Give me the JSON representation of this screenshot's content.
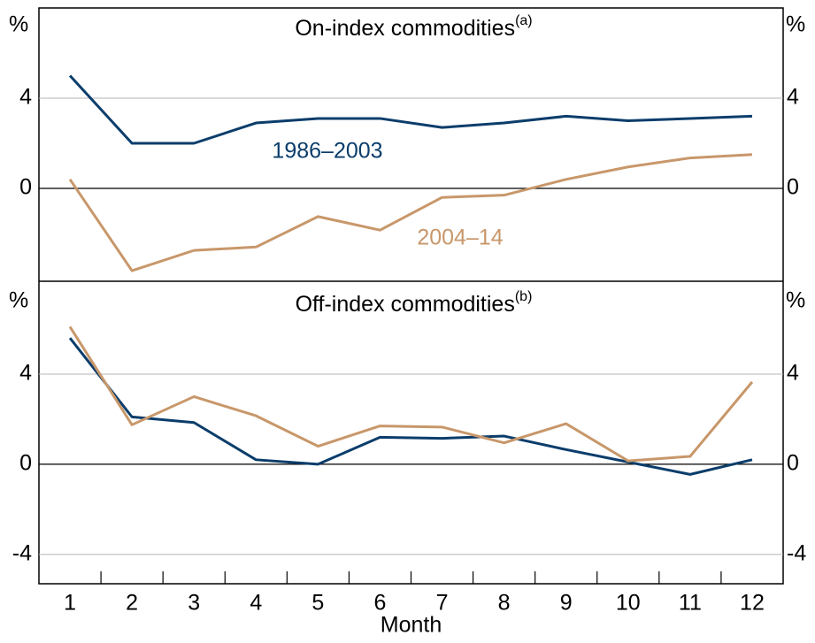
{
  "chart_data": [
    {
      "type": "line",
      "title": "On-index commodities",
      "title_note": "(a)",
      "y_unit": "%",
      "x": [
        1,
        2,
        3,
        4,
        5,
        6,
        7,
        8,
        9,
        10,
        11,
        12
      ],
      "xlim": [
        0.5,
        12.5
      ],
      "ylim": [
        -4,
        8
      ],
      "yticks": [
        0,
        4
      ],
      "grid": true,
      "series": [
        {
          "name": "1986–2003",
          "color": "#0b3d6b",
          "values": [
            5.0,
            2.0,
            2.0,
            2.9,
            3.1,
            3.1,
            2.7,
            2.9,
            3.2,
            3.0,
            3.1,
            3.2
          ]
        },
        {
          "name": "2004–14",
          "color": "#c8976a",
          "values": [
            0.4,
            -3.65,
            -2.75,
            -2.6,
            -1.25,
            -1.85,
            -0.4,
            -0.3,
            0.4,
            0.95,
            1.35,
            1.5
          ]
        }
      ]
    },
    {
      "type": "line",
      "title": "Off-index commodities",
      "title_note": "(b)",
      "y_unit": "%",
      "xlabel": "Month",
      "x": [
        1,
        2,
        3,
        4,
        5,
        6,
        7,
        8,
        9,
        10,
        11,
        12
      ],
      "xlim": [
        0.5,
        12.5
      ],
      "xticks": [
        1,
        2,
        3,
        4,
        5,
        6,
        7,
        8,
        9,
        10,
        11,
        12
      ],
      "ylim": [
        -5.3,
        8
      ],
      "yticks": [
        -4,
        0,
        4
      ],
      "grid": true,
      "series": [
        {
          "color": "#0b3d6b",
          "values": [
            5.6,
            2.1,
            1.85,
            0.2,
            0.0,
            1.2,
            1.15,
            1.25,
            0.65,
            0.1,
            -0.45,
            0.2
          ]
        },
        {
          "color": "#c8976a",
          "values": [
            6.1,
            1.75,
            3.0,
            2.15,
            0.8,
            1.7,
            1.65,
            0.95,
            1.8,
            0.15,
            0.35,
            3.65
          ]
        }
      ]
    }
  ]
}
